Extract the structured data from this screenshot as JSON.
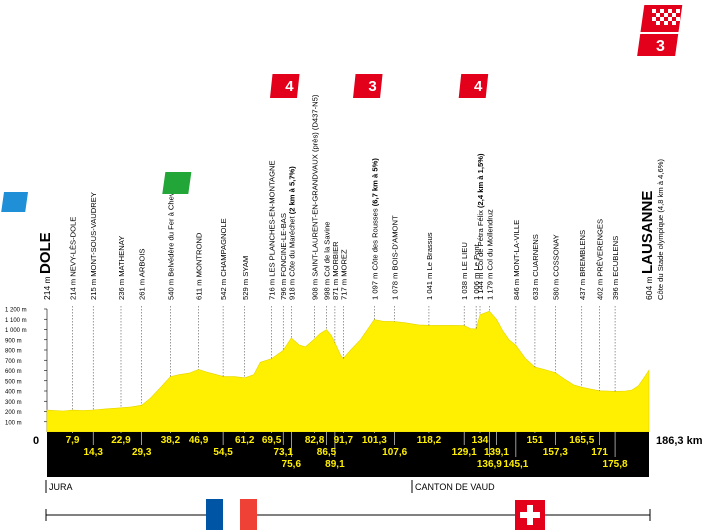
{
  "colors": {
    "profile_fill": "#ffef00",
    "band": "#000000",
    "band_text": "#ffef00",
    "climb_red": "#e2001a",
    "sprint_green": "#23a638",
    "start_blue": "#1f8fd8",
    "france_blue": "#0055a4",
    "france_red": "#ef4135",
    "swiss_red": "#e2001a"
  },
  "start": {
    "name": "DOLE",
    "alt": "214 m",
    "badge_icon": "start-flag-icon"
  },
  "finish": {
    "name": "LAUSANNE",
    "alt": "604 m",
    "desc": "Côte du Stade olympique (4,8 km à 4,6%)",
    "badge_icon": "finish-flag-icon",
    "category": "3"
  },
  "total_distance": "186,3 km",
  "zero_label": "0",
  "regions": {
    "left": "JURA",
    "right": "CANTON DE VAUD"
  },
  "sprint": {
    "label": "S",
    "icon": "intermediate-sprint-icon"
  },
  "climbs": [
    {
      "cat": "4",
      "name": "Côte du Maréchet"
    },
    {
      "cat": "3",
      "name": "Côte des Rousses"
    },
    {
      "cat": "4",
      "name": "Col de Pétra Félix"
    }
  ],
  "chart_data": {
    "type": "area",
    "title": "",
    "xlabel": "",
    "ylabel": "",
    "xlim": [
      0,
      186.3
    ],
    "ylim": [
      0,
      1200
    ],
    "y_ticks": [
      "100 m",
      "200 m",
      "300 m",
      "400 m",
      "500 m",
      "600 m",
      "700 m",
      "800 m",
      "900 m",
      "1 000 m",
      "1 100 m",
      "1 200 m"
    ],
    "profile": [
      [
        0,
        214
      ],
      [
        5,
        205
      ],
      [
        7.9,
        214
      ],
      [
        11,
        210
      ],
      [
        14.3,
        215
      ],
      [
        18,
        225
      ],
      [
        22.9,
        236
      ],
      [
        26,
        245
      ],
      [
        29.3,
        261
      ],
      [
        32,
        330
      ],
      [
        35,
        430
      ],
      [
        38.2,
        540
      ],
      [
        41,
        560
      ],
      [
        44,
        575
      ],
      [
        46.9,
        611
      ],
      [
        50,
        580
      ],
      [
        54.5,
        542
      ],
      [
        58,
        540
      ],
      [
        61.2,
        529
      ],
      [
        64,
        560
      ],
      [
        66,
        680
      ],
      [
        69.5,
        716
      ],
      [
        71.5,
        760
      ],
      [
        73.1,
        796
      ],
      [
        75.6,
        918
      ],
      [
        78,
        850
      ],
      [
        80,
        830
      ],
      [
        82.8,
        908
      ],
      [
        84.5,
        960
      ],
      [
        86.5,
        998
      ],
      [
        88,
        940
      ],
      [
        89.1,
        871
      ],
      [
        91,
        740
      ],
      [
        91.7,
        717
      ],
      [
        94,
        800
      ],
      [
        97,
        900
      ],
      [
        101.3,
        1097
      ],
      [
        104,
        1080
      ],
      [
        107.6,
        1078
      ],
      [
        111,
        1065
      ],
      [
        115,
        1045
      ],
      [
        118.2,
        1041
      ],
      [
        122,
        1040
      ],
      [
        126,
        1040
      ],
      [
        129.1,
        1038
      ],
      [
        131,
        1010
      ],
      [
        132.8,
        1006
      ],
      [
        134,
        1144
      ],
      [
        136.9,
        1179
      ],
      [
        139.1,
        1100
      ],
      [
        141,
        990
      ],
      [
        143,
        900
      ],
      [
        145.1,
        846
      ],
      [
        148,
        720
      ],
      [
        151,
        633
      ],
      [
        154,
        610
      ],
      [
        157.3,
        580
      ],
      [
        160,
        520
      ],
      [
        163,
        460
      ],
      [
        165.5,
        437
      ],
      [
        168,
        420
      ],
      [
        171,
        402
      ],
      [
        173.5,
        400
      ],
      [
        175.8,
        396
      ],
      [
        179,
        400
      ],
      [
        181,
        410
      ],
      [
        183,
        450
      ],
      [
        185,
        540
      ],
      [
        186.3,
        604
      ]
    ],
    "places": [
      {
        "km": 0,
        "alt": "214 m",
        "name": "DOLE",
        "kind": "start"
      },
      {
        "km": 7.9,
        "alt": "214 m",
        "name": "NEVY-LÈS-DOLE"
      },
      {
        "km": 14.3,
        "alt": "215 m",
        "name": "MONT-SOUS-VAUDREY"
      },
      {
        "km": 22.9,
        "alt": "236 m",
        "name": "MATHENAY"
      },
      {
        "km": 29.3,
        "alt": "261 m",
        "name": "ARBOIS"
      },
      {
        "km": 38.2,
        "alt": "540 m",
        "name": "Belvédère du Fer à Cheval"
      },
      {
        "km": 46.9,
        "alt": "611 m",
        "name": "MONTROND"
      },
      {
        "km": 54.5,
        "alt": "542 m",
        "name": "CHAMPAGNOLE"
      },
      {
        "km": 61.2,
        "alt": "529 m",
        "name": "SYAM"
      },
      {
        "km": 69.5,
        "alt": "716 m",
        "name": "LES PLANCHES-EN-MONTAGNE"
      },
      {
        "km": 73.1,
        "alt": "796 m",
        "name": "FONCINE-LE-BAS"
      },
      {
        "km": 75.6,
        "alt": "918 m",
        "name": "Côte du Maréchet",
        "detail": "(2 km à 5,7%)"
      },
      {
        "km": 82.8,
        "alt": "908 m",
        "name": "SAINT-LAURENT-EN-GRANDVAUX (près) (D437-N5)"
      },
      {
        "km": 86.5,
        "alt": "998 m",
        "name": "Col de la Savine"
      },
      {
        "km": 89.1,
        "alt": "871 m",
        "name": "MORBIER"
      },
      {
        "km": 91.7,
        "alt": "717 m",
        "name": "MOREZ"
      },
      {
        "km": 101.3,
        "alt": "1 097 m",
        "name": "Côte des Rousses",
        "detail": "(6,7 km à 5%)"
      },
      {
        "km": 107.6,
        "alt": "1 078 m",
        "name": "BOIS-D'AMONT"
      },
      {
        "km": 118.2,
        "alt": "1 041 m",
        "name": "Le Brassus"
      },
      {
        "km": 129.1,
        "alt": "1 038 m",
        "name": "LE LIEU"
      },
      {
        "km": 132.8,
        "alt": "1 006 m",
        "name": "Le Pont"
      },
      {
        "km": 134,
        "alt": "1 144 m",
        "name": "Col de Pétra Félix",
        "detail": "(2,4 km à 1,5%)"
      },
      {
        "km": 136.9,
        "alt": "1 179 m",
        "name": "Col du Mollendruz"
      },
      {
        "km": 145.1,
        "alt": "846 m",
        "name": "MONT-LA-VILLE"
      },
      {
        "km": 151,
        "alt": "633 m",
        "name": "CUARNENS"
      },
      {
        "km": 157.3,
        "alt": "580 m",
        "name": "COSSONAY"
      },
      {
        "km": 165.5,
        "alt": "437 m",
        "name": "BREMBLENS"
      },
      {
        "km": 171,
        "alt": "402 m",
        "name": "PRÉVERENGES"
      },
      {
        "km": 175.8,
        "alt": "396 m",
        "name": "ECUBLENS"
      },
      {
        "km": 186.3,
        "alt": "604 m",
        "name": "LAUSANNE",
        "kind": "finish"
      }
    ],
    "km_marks": [
      {
        "km": 7.9,
        "label": "7,9",
        "row": 0
      },
      {
        "km": 14.3,
        "label": "14,3",
        "row": 1
      },
      {
        "km": 22.9,
        "label": "22,9",
        "row": 0
      },
      {
        "km": 29.3,
        "label": "29,3",
        "row": 1
      },
      {
        "km": 38.2,
        "label": "38,2",
        "row": 0
      },
      {
        "km": 46.9,
        "label": "46,9",
        "row": 0
      },
      {
        "km": 54.5,
        "label": "54,5",
        "row": 1
      },
      {
        "km": 61.2,
        "label": "61,2",
        "row": 0
      },
      {
        "km": 69.5,
        "label": "69,5",
        "row": 0
      },
      {
        "km": 73.1,
        "label": "73,1",
        "row": 1
      },
      {
        "km": 75.6,
        "label": "75,6",
        "row": 2
      },
      {
        "km": 82.8,
        "label": "82,8",
        "row": 0
      },
      {
        "km": 86.5,
        "label": "86,5",
        "row": 1
      },
      {
        "km": 89.1,
        "label": "89,1",
        "row": 2
      },
      {
        "km": 91.7,
        "label": "91,7",
        "row": 0
      },
      {
        "km": 101.3,
        "label": "101,3",
        "row": 0
      },
      {
        "km": 107.6,
        "label": "107,6",
        "row": 1
      },
      {
        "km": 118.2,
        "label": "118,2",
        "row": 0
      },
      {
        "km": 129.1,
        "label": "129,1",
        "row": 1
      },
      {
        "km": 134,
        "label": "134",
        "row": 0
      },
      {
        "km": 136.9,
        "label": "136,9",
        "row": 2
      },
      {
        "km": 139.1,
        "label": "139,1",
        "row": 1
      },
      {
        "km": 145.1,
        "label": "145,1",
        "row": 2
      },
      {
        "km": 151,
        "label": "151",
        "row": 0
      },
      {
        "km": 157.3,
        "label": "157,3",
        "row": 1
      },
      {
        "km": 165.5,
        "label": "165,5",
        "row": 0
      },
      {
        "km": 171,
        "label": "171",
        "row": 1
      },
      {
        "km": 175.8,
        "label": "175,8",
        "row": 2
      }
    ],
    "markers": [
      {
        "type": "sprint",
        "km": 46.9,
        "label": "S"
      },
      {
        "type": "climb",
        "km": 75.6,
        "cat": "4"
      },
      {
        "type": "climb",
        "km": 101.3,
        "cat": "3"
      },
      {
        "type": "climb",
        "km": 134,
        "cat": "4"
      },
      {
        "type": "climb",
        "km": 186.3,
        "cat": "3"
      }
    ]
  }
}
